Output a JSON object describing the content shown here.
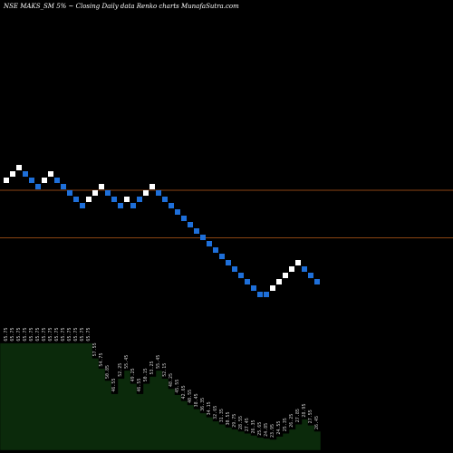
{
  "header": {
    "title": "NSE MAKS_SM 5% ~ Closing Daily data Renko charts MunafaSutra.com"
  },
  "chart_data": {
    "type": "renko",
    "title": "NSE MAKS_SM 5% ~ Closing Daily data Renko charts MunafaSutra.com",
    "bricks": [
      {
        "dir": "up",
        "level": 12
      },
      {
        "dir": "up",
        "level": 13
      },
      {
        "dir": "up",
        "level": 14
      },
      {
        "dir": "down",
        "level": 13
      },
      {
        "dir": "down",
        "level": 12
      },
      {
        "dir": "down",
        "level": 11
      },
      {
        "dir": "up",
        "level": 12
      },
      {
        "dir": "up",
        "level": 13
      },
      {
        "dir": "down",
        "level": 12
      },
      {
        "dir": "down",
        "level": 11
      },
      {
        "dir": "down",
        "level": 10
      },
      {
        "dir": "down",
        "level": 9
      },
      {
        "dir": "down",
        "level": 8
      },
      {
        "dir": "up",
        "level": 9
      },
      {
        "dir": "up",
        "level": 10
      },
      {
        "dir": "up",
        "level": 11
      },
      {
        "dir": "down",
        "level": 10
      },
      {
        "dir": "down",
        "level": 9
      },
      {
        "dir": "down",
        "level": 8
      },
      {
        "dir": "up",
        "level": 9
      },
      {
        "dir": "down",
        "level": 8
      },
      {
        "dir": "down",
        "level": 9
      },
      {
        "dir": "up",
        "level": 10
      },
      {
        "dir": "up",
        "level": 11
      },
      {
        "dir": "down",
        "level": 10
      },
      {
        "dir": "down",
        "level": 9
      },
      {
        "dir": "down",
        "level": 8
      },
      {
        "dir": "down",
        "level": 7
      },
      {
        "dir": "down",
        "level": 6
      },
      {
        "dir": "down",
        "level": 5
      },
      {
        "dir": "down",
        "level": 4
      },
      {
        "dir": "down",
        "level": 3
      },
      {
        "dir": "down",
        "level": 2
      },
      {
        "dir": "down",
        "level": 1
      },
      {
        "dir": "down",
        "level": 0
      },
      {
        "dir": "down",
        "level": -1
      },
      {
        "dir": "down",
        "level": -2
      },
      {
        "dir": "down",
        "level": -3
      },
      {
        "dir": "down",
        "level": -4
      },
      {
        "dir": "down",
        "level": -5
      },
      {
        "dir": "down",
        "level": -6
      },
      {
        "dir": "down",
        "level": -6
      },
      {
        "dir": "up",
        "level": -5
      },
      {
        "dir": "up",
        "level": -4
      },
      {
        "dir": "up",
        "level": -3
      },
      {
        "dir": "up",
        "level": -2
      },
      {
        "dir": "up",
        "level": -1
      },
      {
        "dir": "down",
        "level": -2
      },
      {
        "dir": "down",
        "level": -3
      },
      {
        "dir": "down",
        "level": -4
      }
    ],
    "volume_labels": [
      "65.75",
      "65.75",
      "65.75",
      "65.75",
      "65.75",
      "65.75",
      "65.75",
      "65.75",
      "65.75",
      "65.75",
      "65.75",
      "65.75",
      "65.75",
      "65.75",
      "57.55",
      "54.75",
      "50.85",
      "46.55",
      "52.25",
      "55.45",
      "49.25",
      "46.55",
      "50.15",
      "53.25",
      "55.45",
      "52.15",
      "48.25",
      "45.55",
      "42.65",
      "40.55",
      "38.45",
      "36.35",
      "34.15",
      "32.65",
      "31.35",
      "30.55",
      "29.75",
      "28.55",
      "27.45",
      "26.35",
      "25.65",
      "24.85",
      "23.95",
      "24.55",
      "25.35",
      "26.25",
      "27.85",
      "28.95",
      "27.55",
      "26.45"
    ],
    "volume_levels": [
      0.95,
      0.95,
      0.95,
      0.95,
      0.95,
      0.95,
      0.95,
      0.95,
      0.95,
      0.95,
      0.95,
      0.95,
      0.95,
      0.95,
      0.8,
      0.7,
      0.58,
      0.45,
      0.6,
      0.68,
      0.55,
      0.45,
      0.55,
      0.62,
      0.68,
      0.6,
      0.5,
      0.44,
      0.38,
      0.34,
      0.3,
      0.26,
      0.22,
      0.18,
      0.15,
      0.12,
      0.1,
      0.08,
      0.06,
      0.04,
      0.02,
      0.01,
      0.0,
      0.03,
      0.06,
      0.1,
      0.15,
      0.2,
      0.14,
      0.08
    ],
    "reference_lines": [
      {
        "level": 10.5,
        "color": "#8b4513"
      },
      {
        "level": 3.0,
        "color": "#8b4513"
      }
    ],
    "colors": {
      "background": "#000000",
      "up": "#ffffff",
      "down": "#1e6fd9",
      "volume_fill": "#0b2a0b",
      "volume_line": "#000000"
    }
  }
}
